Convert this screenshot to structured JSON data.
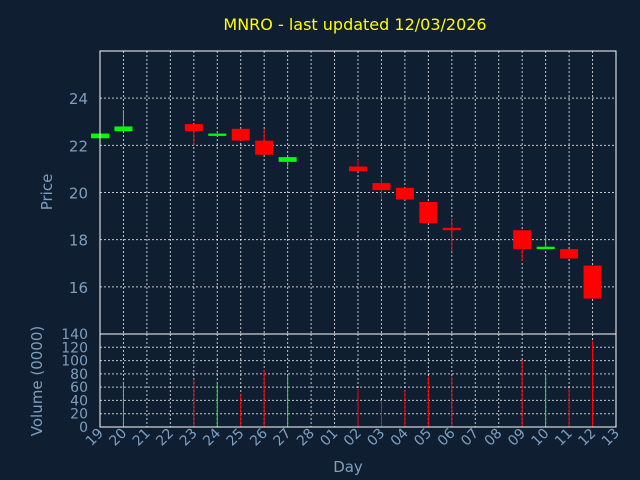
{
  "chart_data": {
    "type": "candlestick",
    "title": "MNRO - last updated 12/03/2026",
    "xlabel": "Day",
    "ylabel": "Price",
    "volume_label": "Volume (0000)",
    "grid": true,
    "colors": {
      "background": "#0f1e30",
      "title": "#ffff00",
      "axis_text": "#7f9fbf",
      "frame": "#ffffff",
      "grid": "#ffffff",
      "up": "#00ff00",
      "down": "#ff0000"
    },
    "x_ticks": [
      "19",
      "20",
      "21",
      "22",
      "23",
      "24",
      "25",
      "26",
      "27",
      "28",
      "01",
      "02",
      "03",
      "04",
      "05",
      "06",
      "07",
      "08",
      "09",
      "10",
      "11",
      "12",
      "13"
    ],
    "price_axis": {
      "min": 14,
      "max": 26,
      "ticks": [
        16,
        18,
        20,
        22,
        24
      ]
    },
    "volume_axis": {
      "min": 0,
      "max": 140,
      "ticks": [
        0,
        20,
        40,
        60,
        80,
        100,
        120,
        140
      ]
    },
    "candles": [
      {
        "day": "19",
        "open": 22.3,
        "high": 22.5,
        "low": 22.3,
        "close": 22.5,
        "volume": 0
      },
      {
        "day": "20",
        "open": 22.6,
        "high": 23.5,
        "low": 22.6,
        "close": 22.8,
        "volume": 68
      },
      {
        "day": "23",
        "open": 22.9,
        "high": 22.9,
        "low": 22.0,
        "close": 22.6,
        "volume": 72
      },
      {
        "day": "24",
        "open": 22.4,
        "high": 22.5,
        "low": 22.4,
        "close": 22.5,
        "volume": 68
      },
      {
        "day": "25",
        "open": 22.7,
        "high": 22.7,
        "low": 22.2,
        "close": 22.2,
        "volume": 50
      },
      {
        "day": "26",
        "open": 22.2,
        "high": 22.7,
        "low": 21.6,
        "close": 21.6,
        "volume": 86
      },
      {
        "day": "27",
        "open": 21.3,
        "high": 21.5,
        "low": 21.1,
        "close": 21.5,
        "volume": 78
      },
      {
        "day": "02",
        "open": 21.1,
        "high": 21.4,
        "low": 20.9,
        "close": 20.9,
        "volume": 57
      },
      {
        "day": "03",
        "open": 20.4,
        "high": 20.6,
        "low": 19.7,
        "close": 20.1,
        "volume": 40
      },
      {
        "day": "04",
        "open": 20.2,
        "high": 20.2,
        "low": 19.7,
        "close": 19.7,
        "volume": 55
      },
      {
        "day": "05",
        "open": 19.6,
        "high": 19.6,
        "low": 18.7,
        "close": 18.7,
        "volume": 76
      },
      {
        "day": "06",
        "open": 18.5,
        "high": 18.9,
        "low": 17.5,
        "close": 18.4,
        "volume": 76
      },
      {
        "day": "09",
        "open": 18.4,
        "high": 18.4,
        "low": 17.1,
        "close": 17.6,
        "volume": 101
      },
      {
        "day": "10",
        "open": 17.6,
        "high": 18.1,
        "low": 17.6,
        "close": 17.7,
        "volume": 81
      },
      {
        "day": "11",
        "open": 17.6,
        "high": 17.6,
        "low": 17.2,
        "close": 17.2,
        "volume": 59
      },
      {
        "day": "12",
        "open": 16.9,
        "high": 16.9,
        "low": 15.5,
        "close": 15.5,
        "volume": 130
      }
    ]
  }
}
